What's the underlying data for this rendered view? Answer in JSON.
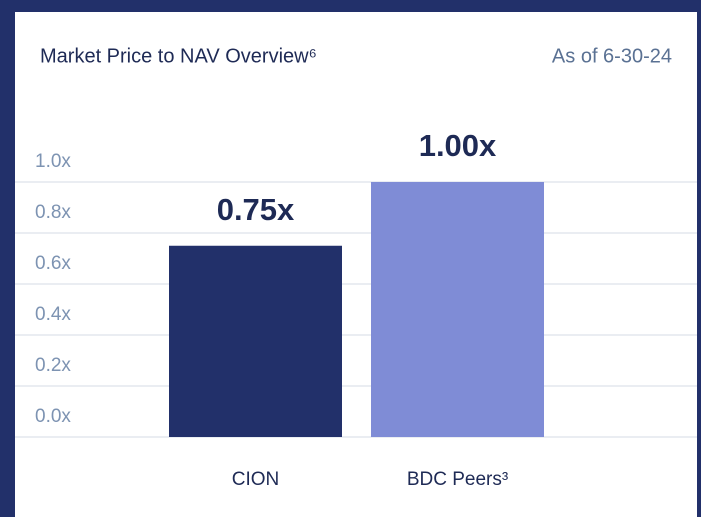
{
  "chart_data": {
    "type": "bar",
    "title": "Market Price to NAV Overview⁶",
    "subtitle": "As of 6-30-24",
    "categories": [
      "CION",
      "BDC Peers³"
    ],
    "values": [
      0.75,
      1.0
    ],
    "value_labels": [
      "0.75x",
      "1.00x"
    ],
    "colors": [
      "#22306a",
      "#7f8cd6"
    ],
    "ylim": [
      0,
      1
    ],
    "yticks": [
      {
        "value": 0,
        "label": "0.0x"
      },
      {
        "value": 0.2,
        "label": "0.2x"
      },
      {
        "value": 0.4,
        "label": "0.4x"
      },
      {
        "value": 0.6,
        "label": "0.6x"
      },
      {
        "value": 0.8,
        "label": "0.8x"
      },
      {
        "value": 1.0,
        "label": "1.0x"
      }
    ],
    "grid": true
  }
}
